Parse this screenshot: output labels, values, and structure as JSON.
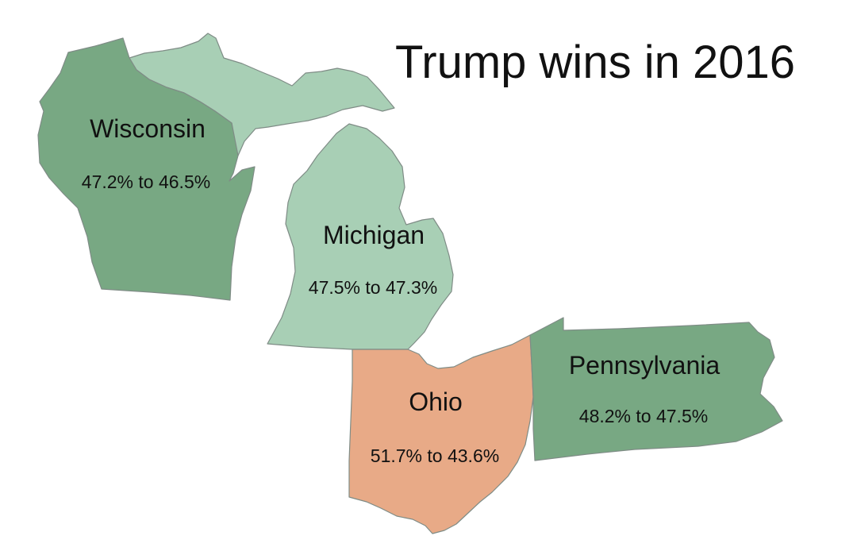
{
  "title": "Trump wins in 2016",
  "colors": {
    "background": "#ffffff",
    "dark_green": "#78a883",
    "light_green": "#a8cfb5",
    "salmon": "#e8aa87",
    "outline": "#7f8c86"
  },
  "states": {
    "wisconsin": {
      "name": "Wisconsin",
      "result": "47.2% to 46.5%",
      "fill_color": "dark_green"
    },
    "michigan": {
      "name": "Michigan",
      "result": "47.5% to 47.3%",
      "fill_color": "light_green"
    },
    "ohio": {
      "name": "Ohio",
      "result": "51.7% to 43.6%",
      "fill_color": "salmon"
    },
    "pennsylvania": {
      "name": "Pennsylvania",
      "result": "48.2% to 47.5%",
      "fill_color": "dark_green"
    }
  }
}
